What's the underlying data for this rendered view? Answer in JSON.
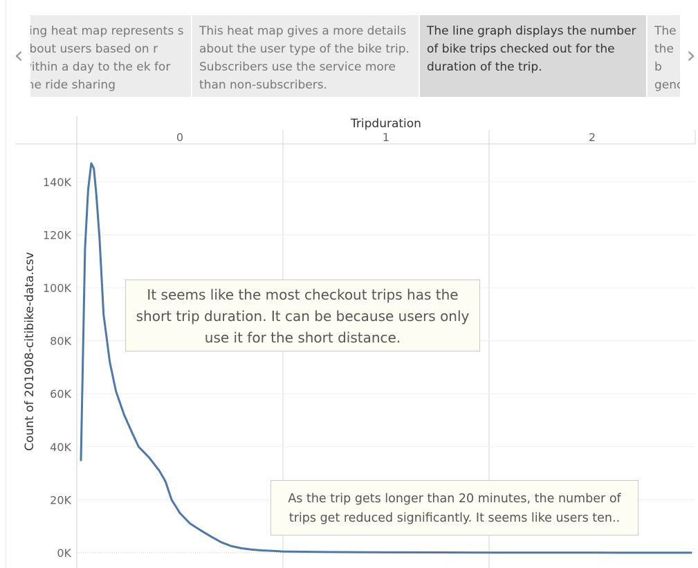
{
  "story": {
    "prev_icon": "chevron-left-icon",
    "next_icon": "chevron-right-icon",
    "captions": [
      {
        "text": "ving heat map represents s about users based on r within a day to the ek for the ride sharing",
        "active": false
      },
      {
        "text": "This heat map gives a more details about the user type of the bike trip. Subscribers use the service more than non-subscribers.",
        "active": false
      },
      {
        "text": "The line graph displays the number of bike trips checked out for the duration of the trip.",
        "active": true
      },
      {
        "text": "The the b genc",
        "active": false
      }
    ]
  },
  "chart_data": {
    "type": "line",
    "title": "",
    "xlabel": "Tripduration",
    "ylabel": "Count of 201908-citibike-data.csv",
    "x_header_ticks": [
      "0",
      "1",
      "2"
    ],
    "yticks": [
      "0K",
      "20K",
      "40K",
      "60K",
      "80K",
      "100K",
      "120K",
      "140K"
    ],
    "ylim": [
      0,
      150000
    ],
    "xlim": [
      0,
      3
    ],
    "grid": true,
    "line_color": "#4e79a7",
    "series": [
      {
        "x": [
          0.02,
          0.04,
          0.055,
          0.07,
          0.083,
          0.095,
          0.11,
          0.13,
          0.16,
          0.19,
          0.23,
          0.27,
          0.3,
          0.35,
          0.4,
          0.43,
          0.46,
          0.5,
          0.55,
          0.6,
          0.65,
          0.7,
          0.75,
          0.8,
          0.85,
          0.9,
          0.95,
          1.0,
          1.2,
          1.5,
          2.0,
          2.5,
          2.98
        ],
        "values": [
          35000,
          115000,
          137000,
          147000,
          145000,
          135000,
          119000,
          90000,
          72000,
          61000,
          52000,
          45000,
          40000,
          36000,
          31000,
          27000,
          20000,
          15000,
          11000,
          8500,
          6200,
          4000,
          2500,
          1700,
          1200,
          900,
          700,
          500,
          300,
          150,
          80,
          40,
          20
        ]
      }
    ],
    "annotations": [
      "It seems like the most checkout trips has the short  trip duration. It can be because users only use it for the short distance.",
      "As the trip gets longer than 20 minutes, the number of trips get reduced significantly. It seems like users ten.."
    ]
  }
}
